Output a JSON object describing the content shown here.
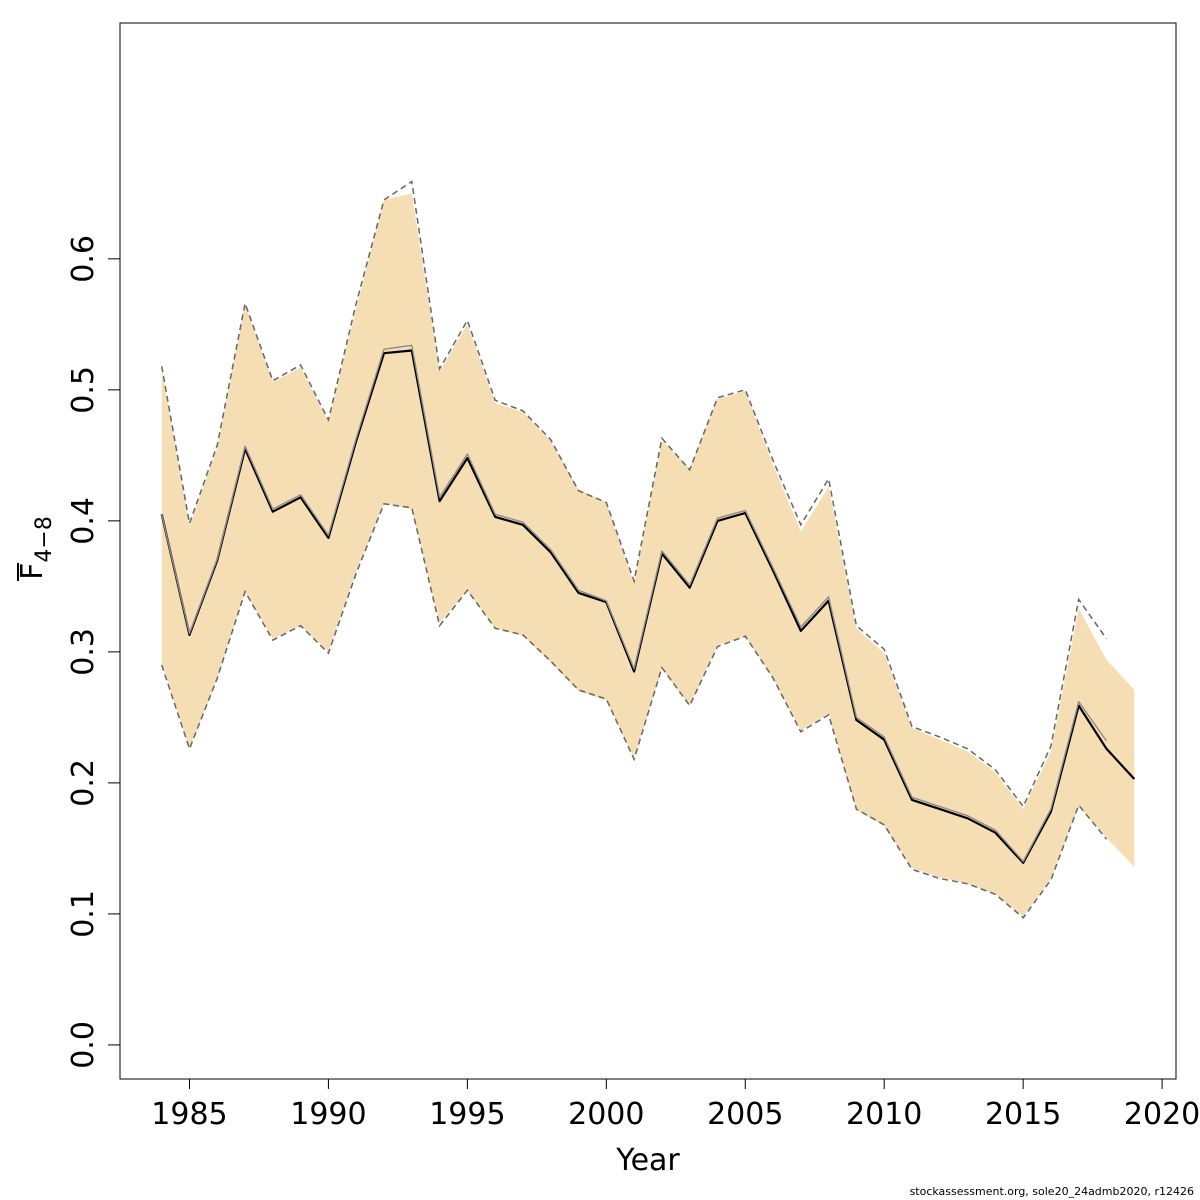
{
  "chart_data": {
    "type": "line",
    "title": "",
    "xlabel": "Year",
    "ylabel": {
      "base": "F",
      "subscript": "4−8",
      "overline": true
    },
    "xlim": [
      1982.5,
      2020.5
    ],
    "ylim": [
      -0.026,
      0.78
    ],
    "xticks": [
      1985,
      1990,
      1995,
      2000,
      2005,
      2010,
      2015,
      2020
    ],
    "yticks": [
      0.0,
      0.1,
      0.2,
      0.3,
      0.4,
      0.5,
      0.6
    ],
    "ytick_labels": [
      "0.0",
      "0.1",
      "0.2",
      "0.3",
      "0.4",
      "0.5",
      "0.6"
    ],
    "grid": false,
    "band_color": "#f5deb3",
    "x": [
      1984,
      1985,
      1986,
      1987,
      1988,
      1989,
      1990,
      1991,
      1992,
      1993,
      1994,
      1995,
      1996,
      1997,
      1998,
      1999,
      2000,
      2001,
      2002,
      2003,
      2004,
      2005,
      2006,
      2007,
      2008,
      2009,
      2010,
      2011,
      2012,
      2013,
      2014,
      2015,
      2016,
      2017,
      2018,
      2019
    ],
    "series": [
      {
        "role": "band_upper",
        "color": "#f5deb3",
        "values": [
          0.516,
          0.396,
          0.456,
          0.565,
          0.506,
          0.517,
          0.476,
          0.562,
          0.645,
          0.65,
          0.514,
          0.55,
          0.49,
          0.483,
          0.461,
          0.424,
          0.414,
          0.352,
          0.461,
          0.44,
          0.493,
          0.499,
          0.443,
          0.392,
          0.426,
          0.318,
          0.299,
          0.242,
          0.233,
          0.224,
          0.208,
          0.18,
          0.224,
          0.333,
          0.294,
          0.271
        ]
      },
      {
        "role": "band_lower",
        "color": "#f5deb3",
        "values": [
          0.292,
          0.226,
          0.28,
          0.346,
          0.31,
          0.32,
          0.3,
          0.361,
          0.413,
          0.409,
          0.322,
          0.347,
          0.318,
          0.312,
          0.292,
          0.27,
          0.263,
          0.219,
          0.287,
          0.259,
          0.305,
          0.312,
          0.28,
          0.24,
          0.253,
          0.179,
          0.167,
          0.135,
          0.128,
          0.123,
          0.115,
          0.098,
          0.127,
          0.182,
          0.158,
          0.136
        ]
      },
      {
        "role": "estimate",
        "color": "#000000",
        "width": 2.2,
        "values": [
          0.405,
          0.313,
          0.37,
          0.455,
          0.407,
          0.418,
          0.387,
          0.461,
          0.528,
          0.53,
          0.415,
          0.448,
          0.403,
          0.397,
          0.376,
          0.345,
          0.338,
          0.285,
          0.375,
          0.349,
          0.4,
          0.406,
          0.362,
          0.316,
          0.339,
          0.248,
          0.233,
          0.187,
          0.18,
          0.173,
          0.162,
          0.139,
          0.178,
          0.259,
          0.226,
          0.203
        ]
      },
      {
        "role": "previous_estimate",
        "color": "#8c8c8c",
        "width": 1.4,
        "values": [
          0.405,
          0.314,
          0.371,
          0.457,
          0.409,
          0.42,
          0.389,
          0.463,
          0.531,
          0.534,
          0.418,
          0.451,
          0.405,
          0.399,
          0.378,
          0.347,
          0.339,
          0.287,
          0.377,
          0.351,
          0.402,
          0.408,
          0.364,
          0.319,
          0.342,
          0.25,
          0.235,
          0.189,
          0.182,
          0.175,
          0.164,
          0.14,
          0.18,
          0.262,
          0.232,
          null
        ]
      },
      {
        "role": "previous_upper",
        "color": "#666666",
        "dash": true,
        "values": [
          0.518,
          0.398,
          0.458,
          0.566,
          0.507,
          0.519,
          0.477,
          0.566,
          0.645,
          0.659,
          0.516,
          0.553,
          0.492,
          0.484,
          0.462,
          0.423,
          0.414,
          0.354,
          0.463,
          0.439,
          0.494,
          0.5,
          0.446,
          0.397,
          0.432,
          0.32,
          0.302,
          0.243,
          0.235,
          0.226,
          0.21,
          0.182,
          0.228,
          0.34,
          0.31,
          null
        ]
      },
      {
        "role": "previous_lower",
        "color": "#666666",
        "dash": true,
        "values": [
          0.29,
          0.226,
          0.28,
          0.346,
          0.309,
          0.32,
          0.299,
          0.36,
          0.413,
          0.41,
          0.32,
          0.347,
          0.318,
          0.313,
          0.293,
          0.271,
          0.264,
          0.218,
          0.288,
          0.259,
          0.304,
          0.312,
          0.28,
          0.239,
          0.252,
          0.18,
          0.168,
          0.134,
          0.127,
          0.123,
          0.115,
          0.097,
          0.126,
          0.183,
          0.157,
          null
        ]
      }
    ]
  },
  "footer": {
    "credit": "stockassessment.org, sole20_24admb2020, r12426"
  }
}
